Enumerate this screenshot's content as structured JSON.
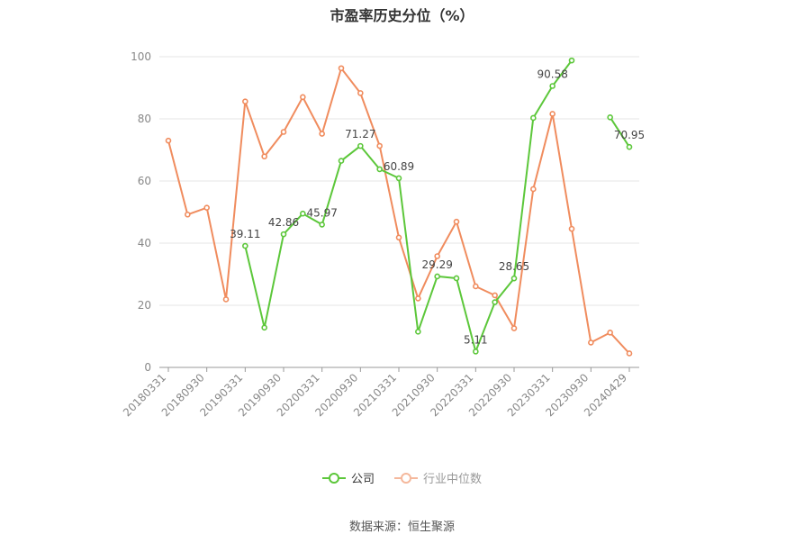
{
  "chart_data": {
    "type": "line",
    "title": "市盈率历史分位（%）",
    "source": "数据来源：恒生聚源",
    "ylim": [
      0,
      100
    ],
    "yticks": [
      0,
      20,
      40,
      60,
      80,
      100
    ],
    "x": [
      "20180331",
      "20180630",
      "20180930",
      "20181231",
      "20190331",
      "20190630",
      "20190930",
      "20191231",
      "20200331",
      "20200630",
      "20200930",
      "20201231",
      "20210331",
      "20210630",
      "20210930",
      "20211231",
      "20220331",
      "20220630",
      "20220930",
      "20221231",
      "20230331",
      "20230630",
      "20230930",
      "20231231",
      "20240429"
    ],
    "x_tick_labels": [
      "20180331",
      "20180930",
      "20190331",
      "20190930",
      "20200331",
      "20200930",
      "20210331",
      "20210930",
      "20220331",
      "20220930",
      "20230331",
      "20230930",
      "20240429"
    ],
    "grid": true,
    "legend_position": "bottom",
    "series": [
      {
        "name": "公司",
        "color": "#5cc73a",
        "values": [
          null,
          null,
          null,
          null,
          39.11,
          12.8,
          42.86,
          49.5,
          45.97,
          66.5,
          71.27,
          63.8,
          60.89,
          11.5,
          29.29,
          28.7,
          5.11,
          21.0,
          28.65,
          80.3,
          90.58,
          98.8,
          null,
          80.5,
          70.95
        ],
        "labels": [
          null,
          null,
          null,
          null,
          "39.11",
          null,
          "42.86",
          null,
          "45.97",
          null,
          "71.27",
          null,
          "60.89",
          null,
          "29.29",
          null,
          "5.11",
          null,
          "28.65",
          null,
          "90.58",
          null,
          null,
          null,
          "70.95"
        ]
      },
      {
        "name": "行业中位数",
        "color": "#f08c5e",
        "values": [
          73.0,
          49.2,
          51.4,
          21.9,
          85.6,
          67.9,
          75.8,
          87.0,
          75.2,
          96.3,
          88.3,
          71.3,
          41.8,
          22.2,
          35.8,
          46.9,
          26.1,
          23.2,
          12.6,
          57.4,
          81.6,
          44.6,
          8.0,
          11.2,
          4.5
        ]
      }
    ]
  }
}
